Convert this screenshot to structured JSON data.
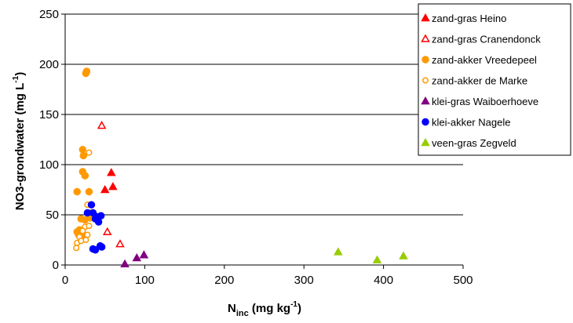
{
  "chart_data": {
    "type": "scatter",
    "x_label": {
      "main": "N",
      "sub": "inc",
      "rest": " (mg kg",
      "sup": "-1",
      "end": ")"
    },
    "y_label": {
      "main": "NO3-grondwater (mg L",
      "sup": "-1",
      "end": ")"
    },
    "xlim": [
      0,
      500
    ],
    "xticks": [
      0,
      100,
      200,
      300,
      400,
      500
    ],
    "ylim": [
      0,
      250
    ],
    "yticks": [
      0,
      50,
      100,
      150,
      200,
      250
    ],
    "grid": true,
    "legend": "upper right",
    "series": [
      {
        "name": "zand-gras Heino",
        "color": "#ff0000",
        "marker": "triangle",
        "filled": true,
        "x": [
          58,
          60,
          50
        ],
        "values": [
          92,
          78,
          75
        ]
      },
      {
        "name": "zand-gras Cranendonck",
        "color": "#ff0000",
        "marker": "triangle",
        "filled": false,
        "x": [
          46,
          53,
          69
        ],
        "values": [
          139,
          33,
          21
        ]
      },
      {
        "name": "zand-akker Vreedepeel",
        "color": "#ff9900",
        "marker": "circle",
        "filled": true,
        "x": [
          27,
          26,
          22,
          23,
          22,
          25,
          15,
          30,
          20,
          25,
          15,
          17,
          20,
          22,
          18,
          32,
          30
        ],
        "values": [
          193,
          191,
          115,
          109,
          93,
          89,
          73,
          73,
          46,
          45,
          33,
          30,
          28,
          31,
          35,
          47,
          52
        ]
      },
      {
        "name": "zand-akker de Marke",
        "color": "#ff9900",
        "marker": "circle",
        "filled": false,
        "x": [
          30,
          28,
          25,
          22,
          18,
          15,
          14,
          26,
          28,
          20,
          30
        ],
        "values": [
          112,
          60,
          38,
          34,
          28,
          22,
          17,
          25,
          30,
          24,
          39
        ]
      },
      {
        "name": "klei-gras Waiboerhoeve",
        "color": "#800080",
        "marker": "triangle",
        "filled": true,
        "x": [
          75,
          90,
          99
        ],
        "values": [
          1,
          7,
          10
        ]
      },
      {
        "name": "klei-akker Nagele",
        "color": "#0000ff",
        "marker": "circle",
        "filled": true,
        "x": [
          33,
          28,
          35,
          40,
          45,
          38,
          42,
          35,
          38,
          46,
          44
        ],
        "values": [
          60,
          52,
          52,
          48,
          49,
          46,
          43,
          16,
          15,
          18,
          19
        ]
      },
      {
        "name": "veen-gras Zegveld",
        "color": "#99cc00",
        "marker": "triangle",
        "filled": true,
        "x": [
          343,
          392,
          425
        ],
        "values": [
          13,
          5,
          9
        ]
      }
    ]
  }
}
